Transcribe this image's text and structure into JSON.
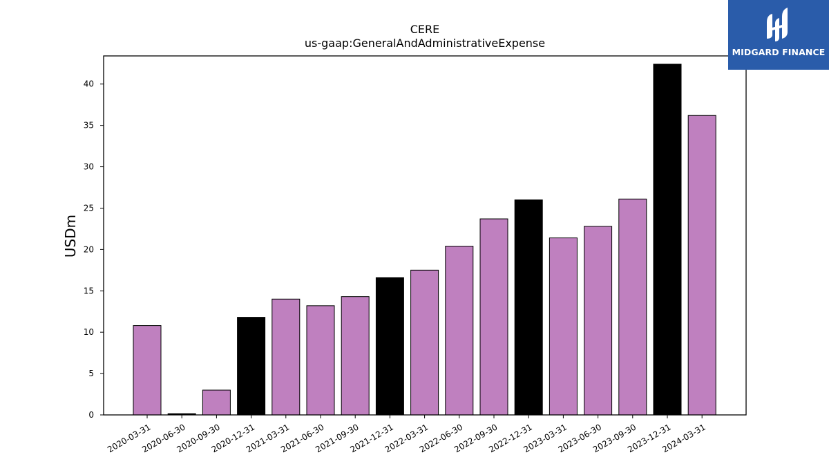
{
  "chart_data": {
    "type": "bar",
    "title": "CERE",
    "subtitle": "us-gaap:GeneralAndAdministrativeExpense",
    "xlabel": "",
    "ylabel": "USDm",
    "ylim": [
      0,
      43.4
    ],
    "yticks": [
      0,
      5,
      10,
      15,
      20,
      25,
      30,
      35,
      40
    ],
    "grid": false,
    "categories": [
      "2020-03-31",
      "2020-06-30",
      "2020-09-30",
      "2020-12-31",
      "2021-03-31",
      "2021-06-30",
      "2021-09-30",
      "2021-12-31",
      "2022-03-31",
      "2022-06-30",
      "2022-09-30",
      "2022-12-31",
      "2023-03-31",
      "2023-06-30",
      "2023-09-30",
      "2023-12-31",
      "2024-03-31"
    ],
    "values": [
      10.8,
      0.15,
      3.0,
      11.8,
      14.0,
      13.2,
      14.3,
      16.6,
      17.5,
      20.4,
      23.7,
      26.0,
      21.4,
      22.8,
      26.1,
      42.4,
      36.2
    ],
    "colors": [
      "#bf80bf",
      "#000000",
      "#bf80bf",
      "#000000",
      "#bf80bf",
      "#bf80bf",
      "#bf80bf",
      "#000000",
      "#bf80bf",
      "#bf80bf",
      "#bf80bf",
      "#000000",
      "#bf80bf",
      "#bf80bf",
      "#bf80bf",
      "#000000",
      "#bf80bf"
    ]
  },
  "logo": {
    "text": "MIDGARD FINANCE",
    "color": "#2a5caa"
  }
}
